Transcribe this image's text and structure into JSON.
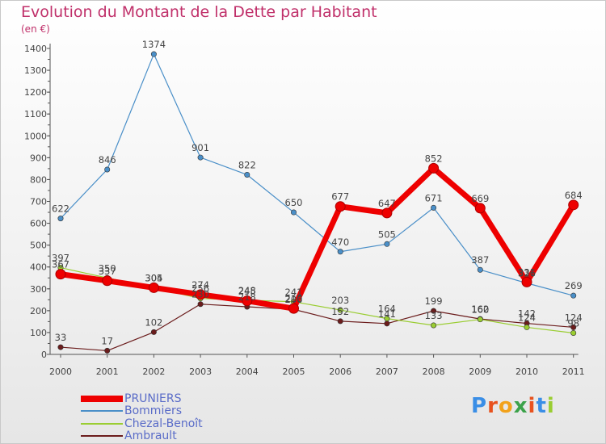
{
  "title": "Evolution du Montant de la Dette par Habitant",
  "unit_label": "(en €)",
  "logo_text": "Proxiti",
  "chart_data": {
    "type": "line",
    "title": "Evolution du Montant de la Dette par Habitant",
    "ylabel": "(en €)",
    "xlabel": "",
    "ylim": [
      0,
      1400
    ],
    "yticks": [
      0,
      100,
      200,
      300,
      400,
      500,
      600,
      700,
      800,
      900,
      1000,
      1100,
      1200,
      1300,
      1400
    ],
    "categories": [
      "2000",
      "2001",
      "2002",
      "2003",
      "2004",
      "2005",
      "2006",
      "2007",
      "2008",
      "2009",
      "2010",
      "2011"
    ],
    "grid": false,
    "legend_position": "bottom-left",
    "series": [
      {
        "name": "Ambrault",
        "color": "#6b1c1c",
        "values": [
          33,
          17,
          102,
          230,
          218,
          206,
          152,
          141,
          199,
          162,
          142,
          124
        ]
      },
      {
        "name": "Chezal-Benoît",
        "color": "#9acd32",
        "values": [
          397,
          350,
          304,
          256,
          248,
          241,
          203,
          164,
          133,
          160,
          124,
          98
        ]
      },
      {
        "name": "Bommiers",
        "color": "#4a8fc8",
        "values": [
          622,
          846,
          1374,
          901,
          822,
          650,
          470,
          505,
          671,
          387,
          326,
          269
        ]
      },
      {
        "name": "PRUNIERS",
        "color": "#ee0000",
        "values": [
          367,
          337,
          305,
          274,
          245,
          210,
          677,
          647,
          852,
          669,
          331,
          684
        ]
      }
    ],
    "legend_order": [
      "PRUNIERS",
      "Bommiers",
      "Chezal-Benoît",
      "Ambrault"
    ]
  }
}
